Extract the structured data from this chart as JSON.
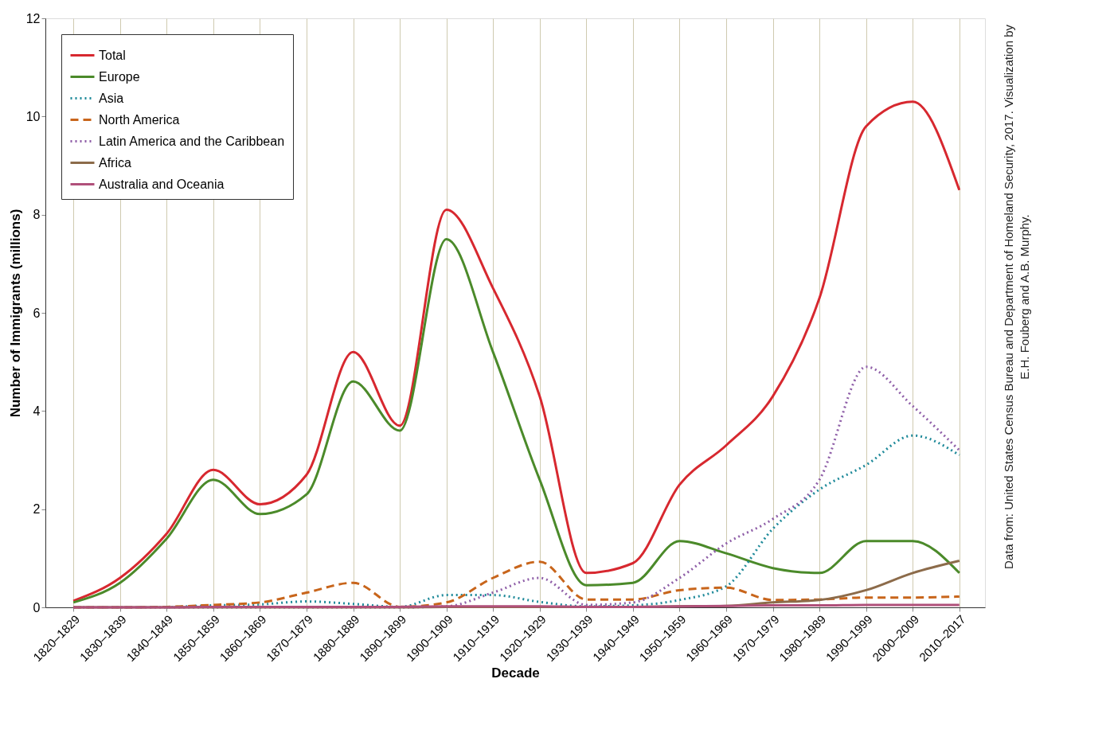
{
  "chart_data": {
    "type": "line",
    "xlabel": "Decade",
    "ylabel": "Number of Immigrants (millions)",
    "categories": [
      "1820–1829",
      "1830–1839",
      "1840–1849",
      "1850–1859",
      "1860–1869",
      "1870–1879",
      "1880–1889",
      "1890–1899",
      "1900–1909",
      "1910–1919",
      "1920–1929",
      "1930–1939",
      "1940–1949",
      "1950–1959",
      "1960–1969",
      "1970–1979",
      "1980–1989",
      "1990–1999",
      "2000–2009",
      "2010–2017"
    ],
    "series": [
      {
        "name": "Total",
        "color": "#d7282f",
        "line_style": "solid",
        "values": [
          0.13,
          0.6,
          1.5,
          2.8,
          2.1,
          2.7,
          5.2,
          3.7,
          8.1,
          6.5,
          4.3,
          0.7,
          0.9,
          2.5,
          3.3,
          4.3,
          6.3,
          9.8,
          10.3,
          8.5
        ]
      },
      {
        "name": "Europe",
        "color": "#4b8a2a",
        "line_style": "solid",
        "values": [
          0.1,
          0.5,
          1.4,
          2.6,
          1.9,
          2.3,
          4.6,
          3.6,
          7.5,
          5.2,
          2.6,
          0.45,
          0.5,
          1.35,
          1.1,
          0.8,
          0.7,
          1.35,
          1.35,
          0.7
        ]
      },
      {
        "name": "Asia",
        "color": "#1f8a9a",
        "line_style": "dotted",
        "values": [
          null,
          null,
          0,
          0.04,
          0.06,
          0.12,
          0.07,
          0.01,
          0.25,
          0.25,
          0.11,
          0.02,
          0.04,
          0.15,
          0.43,
          1.6,
          2.4,
          2.9,
          3.5,
          3.1
        ]
      },
      {
        "name": "North America",
        "color": "#c8651b",
        "line_style": "dashed",
        "values": [
          0,
          0,
          0.01,
          0.05,
          0.1,
          0.3,
          0.5,
          0.01,
          0.1,
          0.6,
          0.93,
          0.16,
          0.16,
          0.35,
          0.4,
          0.15,
          0.16,
          0.2,
          0.2,
          0.22
        ]
      },
      {
        "name": "Latin America and the Caribbean",
        "color": "#8f5fa8",
        "line_style": "dotted",
        "values": [
          0,
          0,
          0,
          0,
          0,
          0,
          0,
          0,
          0.02,
          0.3,
          0.6,
          0.05,
          0.1,
          0.6,
          1.3,
          1.8,
          2.6,
          4.9,
          4.1,
          3.2
        ]
      },
      {
        "name": "Africa",
        "color": "#8c6b4a",
        "line_style": "solid",
        "values": [
          0,
          0,
          0,
          0,
          0,
          0,
          0,
          0,
          0.01,
          0.01,
          0.01,
          0.01,
          0.01,
          0.02,
          0.03,
          0.1,
          0.15,
          0.35,
          0.7,
          0.95
        ]
      },
      {
        "name": "Australia and Oceania",
        "color": "#b0507a",
        "line_style": "solid",
        "values": [
          0,
          0,
          0,
          0.01,
          0.01,
          0.01,
          0.01,
          0.01,
          0.02,
          0.02,
          0.02,
          0.01,
          0.01,
          0.02,
          0.03,
          0.04,
          0.04,
          0.05,
          0.05,
          0.05
        ]
      }
    ],
    "ylim": [
      0,
      12
    ],
    "yticks": [
      0,
      2,
      4,
      6,
      8,
      10,
      12
    ],
    "grid": "x",
    "legend": "top left",
    "marker": "none",
    "annotations": [
      "Data from: United States Census Bureau and Department of Homeland Security, 2017. Visualization by",
      "E.H. Fouberg and A.B. Murphy."
    ]
  }
}
